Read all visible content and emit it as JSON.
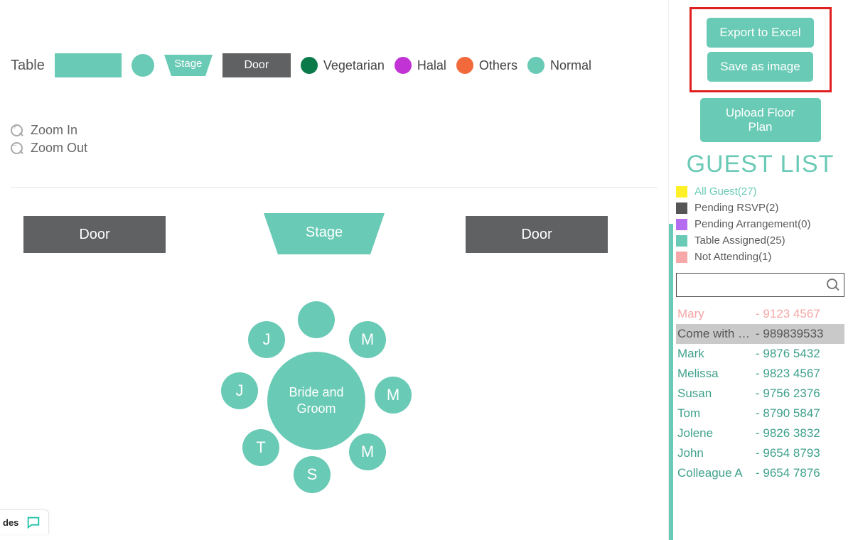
{
  "colors": {
    "teal": "#69cab5",
    "grey": "#5f6163",
    "veg": "#0b7a4b",
    "halal": "#c233d6",
    "others": "#f26a3b",
    "yellow": "#fff028",
    "greySw": "#555555",
    "purple": "#b66cf0",
    "pink": "#f6a7a7",
    "red": "#e02020"
  },
  "legend": {
    "table_label": "Table",
    "stage_label": "Stage",
    "door_label": "Door",
    "diet": [
      {
        "label": "Vegetarian",
        "color": "#0b7a4b"
      },
      {
        "label": "Halal",
        "color": "#c233d6"
      },
      {
        "label": "Others",
        "color": "#f26a3b"
      },
      {
        "label": "Normal",
        "color": "#69cab5"
      }
    ]
  },
  "zoom": {
    "in": "Zoom In",
    "out": "Zoom Out"
  },
  "floor": {
    "door_left": "Door",
    "door_right": "Door",
    "stage": "Stage",
    "table_name": "Bride and Groom",
    "seats": [
      "",
      "J",
      "J",
      "T",
      "S",
      "M",
      "M",
      "M"
    ]
  },
  "sidebar": {
    "buttons": {
      "export": "Export to Excel",
      "image": "Save as image",
      "upload": "Upload Floor Plan"
    },
    "title": "GUEST LIST",
    "categories": [
      {
        "label": "All Guest(27)",
        "color": "#fff028",
        "active": true
      },
      {
        "label": "Pending RSVP(2)",
        "color": "#555555",
        "active": false
      },
      {
        "label": "Pending Arrangement(0)",
        "color": "#b66cf0",
        "active": false
      },
      {
        "label": "Table Assigned(25)",
        "color": "#69cab5",
        "active": false
      },
      {
        "label": "Not Attending(1)",
        "color": "#f6a7a7",
        "active": false
      }
    ],
    "search_placeholder": "",
    "guests": [
      {
        "name": "Mary",
        "phone": "- 9123 4567",
        "style": "na"
      },
      {
        "name": "Come with –…",
        "phone": "- 989839533",
        "style": "sel"
      },
      {
        "name": "Mark",
        "phone": "- 9876 5432",
        "style": "ok"
      },
      {
        "name": "Melissa",
        "phone": "- 9823 4567",
        "style": "ok"
      },
      {
        "name": "Susan",
        "phone": "- 9756 2376",
        "style": "ok"
      },
      {
        "name": "Tom",
        "phone": "- 8790 5847",
        "style": "ok"
      },
      {
        "name": "Jolene",
        "phone": "- 9826 3832",
        "style": "ok"
      },
      {
        "name": "John",
        "phone": "- 9654 8793",
        "style": "ok"
      },
      {
        "name": "Colleague A",
        "phone": "- 9654 7876",
        "style": "ok"
      }
    ]
  },
  "chat": {
    "label": "des"
  }
}
